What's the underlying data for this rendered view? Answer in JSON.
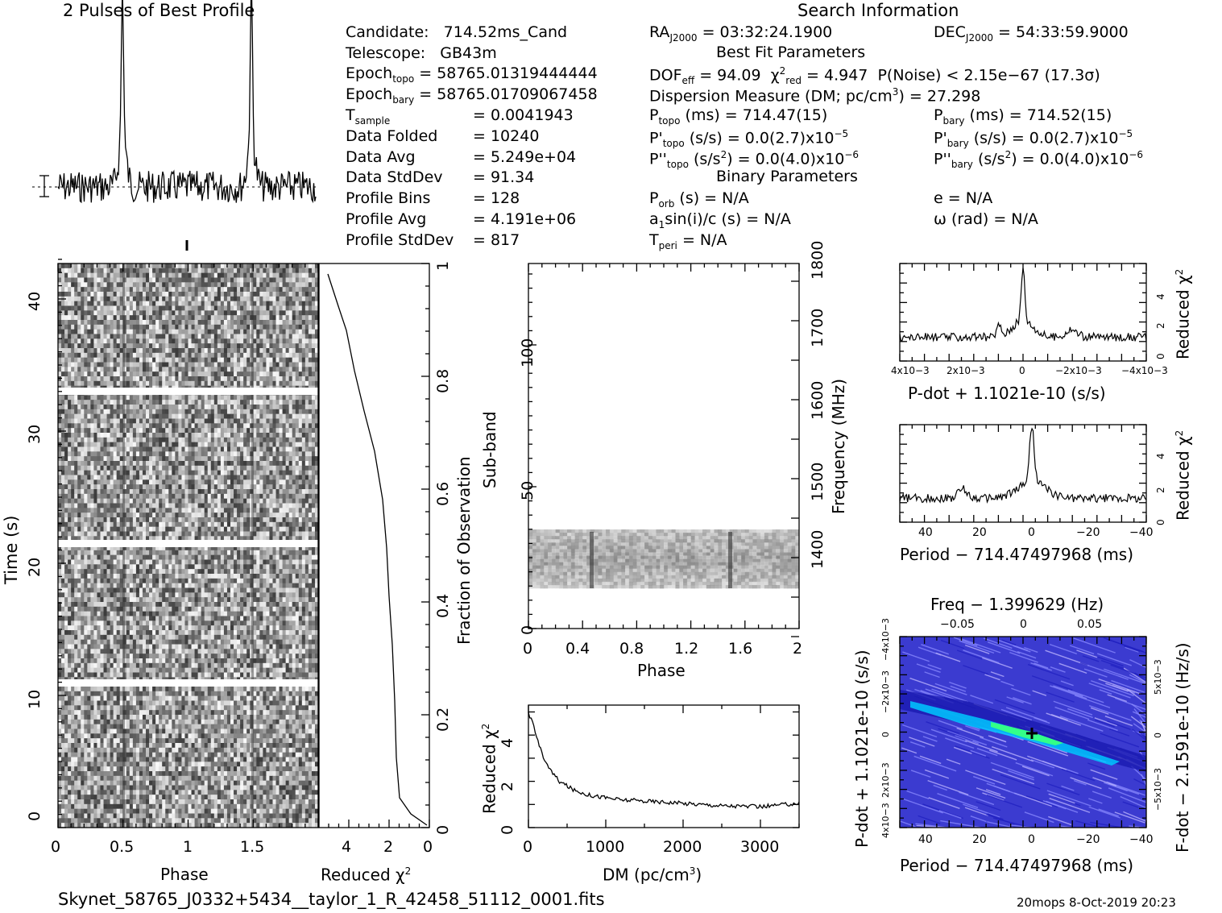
{
  "header": {
    "profile_title": "2 Pulses of Best Profile",
    "search_title": "Search Information",
    "best_fit_title": "Best Fit Parameters",
    "binary_title": "Binary Parameters"
  },
  "info_left": [
    {
      "label": "Candidate:",
      "value": "714.52ms_Cand"
    },
    {
      "label": "Telescope:",
      "value": "GB43m"
    },
    {
      "label": "Epoch",
      "sub": "topo",
      "value": "= 58765.01319444444"
    },
    {
      "label": "Epoch",
      "sub": "bary",
      "value": "= 58765.01709067458"
    },
    {
      "label": "T",
      "sub": "sample",
      "value": "=   0.0041943"
    },
    {
      "label": "Data Folded",
      "value": "=   10240"
    },
    {
      "label": "Data Avg",
      "value": "=   5.249e+04"
    },
    {
      "label": "Data StdDev",
      "value": "=   91.34"
    },
    {
      "label": "Profile Bins",
      "value": "=   128"
    },
    {
      "label": "Profile Avg",
      "value": "=   4.191e+06"
    },
    {
      "label": "Profile StdDev",
      "value": "=  817"
    }
  ],
  "search": {
    "ra_label": "RA",
    "ra_sub": "J2000",
    "ra_value": "= 03:32:24.1900",
    "dec_label": "DEC",
    "dec_sub": "J2000",
    "dec_value": "= 54:33:59.9000",
    "dof_label": "DOF",
    "dof_sub": "eff",
    "dof_value": "= 94.09",
    "chi_label": "χ",
    "chi_sup": "2",
    "chi_sub": "red",
    "chi_value": "= 4.947",
    "pnoise": "P(Noise) < 2.15e−67   (17.3σ)",
    "dm_text": "Dispersion Measure (DM; pc/cm",
    "dm_sup": "3",
    "dm_value": ") = 27.298",
    "ptopo": "(ms) =  714.47(15)",
    "pbary": "(ms) =  714.52(15)",
    "pdtopo": "(s/s) = 0.0(2.7)x10",
    "pdbary": "(s/s) = 0.0(2.7)x10",
    "pd_exp": "−5",
    "pddtopo": "(s/s",
    "pddbary": "(s/s",
    "pdd_rest": ") = 0.0(4.0)x10",
    "pdd_exp": "−6",
    "porb": "(s) = N/A",
    "ecc": "e = N/A",
    "a1sini": "a",
    "a1sini_rest": "sin(i)/c (s) = N/A",
    "omega": "ω (rad) = N/A",
    "tperi": "= N/A"
  },
  "footer": {
    "filename": "Skynet_58765_J0332+5434__taylor_1_R_42458_51112_0001.fits",
    "stamp": "20mops   8-Oct-2019 20:23"
  },
  "labels": {
    "time_axis": "Time (s)",
    "phase_axis": "Phase",
    "reduced_chi2": "Reduced χ",
    "fraction_obs": "Fraction of Observation",
    "subband": "Sub-band",
    "frequency": "Frequency (MHz)",
    "dm_axis": "DM (pc/cm",
    "pdot_axis": "P-dot + 1.1021e-10 (s/s)",
    "period_axis": "Period − 714.47497968 (ms)",
    "freq_top": "Freq − 1.399629 (Hz)",
    "pdot_left": "P-dot + 1.1021e-10 (s/s)",
    "fdot_right": "F-dot − 2.1591e-10 (Hz/s)"
  },
  "chart_data": [
    {
      "type": "line",
      "name": "pulse-profile",
      "title": "2 Pulses of Best Profile",
      "x": "phase 0-2",
      "pulse_phases": [
        0.5,
        1.5
      ]
    },
    {
      "type": "heatmap",
      "name": "time-phase",
      "xlabel": "Phase",
      "ylabel": "Time (s)",
      "xlim": [
        0,
        2
      ],
      "ylim": [
        0,
        43
      ],
      "xticks": [
        "0",
        "0.5",
        "1",
        "1.5"
      ],
      "yticks": [
        "0",
        "10",
        "20",
        "30",
        "40"
      ],
      "gaps_s": [
        11,
        21.7,
        33
      ]
    },
    {
      "type": "line",
      "name": "time-chi2",
      "xlabel": "Reduced χ2",
      "ylabel": "Fraction of Observation",
      "xlim": [
        5,
        0
      ],
      "ylim": [
        0,
        1
      ],
      "xticks": [
        "4",
        "2",
        "0"
      ],
      "yticks": [
        "0",
        "0.2",
        "0.4",
        "0.6",
        "0.8",
        "1"
      ]
    },
    {
      "type": "heatmap",
      "name": "subband-phase",
      "xlabel": "Phase",
      "ylabel": "Sub-band",
      "y2label": "Frequency (MHz)",
      "xlim": [
        0,
        2
      ],
      "ylim": [
        0,
        128
      ],
      "xticks": [
        "0",
        "0.4",
        "0.8",
        "1.2",
        "1.6",
        "2"
      ],
      "yticks": [
        "0",
        "50",
        "100"
      ],
      "y2ticks": [
        "1400",
        "1500",
        "1600",
        "1700",
        "1800"
      ]
    },
    {
      "type": "line",
      "name": "dm-chi2",
      "xlabel": "DM (pc/cm3)",
      "ylabel": "Reduced χ2",
      "xlim": [
        0,
        3500
      ],
      "ylim": [
        0,
        5.3
      ],
      "xticks": [
        "0",
        "1000",
        "2000",
        "3000"
      ],
      "yticks": [
        "0",
        "2",
        "4"
      ],
      "x": [
        0,
        50,
        100,
        200,
        300,
        400,
        500,
        600,
        800,
        1000,
        1200,
        1500,
        1800,
        2000,
        2500,
        3000,
        3500
      ],
      "values": [
        4.9,
        4.6,
        3.9,
        3.0,
        2.4,
        2.0,
        1.8,
        1.6,
        1.4,
        1.3,
        1.2,
        1.15,
        1.1,
        1.05,
        0.95,
        0.9,
        1.05
      ]
    },
    {
      "type": "line",
      "name": "pdot-chi2",
      "xlabel": "P-dot + 1.1021e-10 (s/s)",
      "ylabel": "Reduced χ2",
      "xticks": [
        "4x10−3",
        "2x10−3",
        "0",
        "−2x10−3",
        "−4x10−3"
      ],
      "yticks": [
        "0",
        "2",
        "4"
      ]
    },
    {
      "type": "line",
      "name": "period-chi2",
      "xlabel": "Period − 714.47497968 (ms)",
      "ylabel": "Reduced χ2",
      "xticks": [
        "40",
        "20",
        "0",
        "−20",
        "−40"
      ],
      "yticks": [
        "0",
        "2",
        "4"
      ]
    },
    {
      "type": "heatmap",
      "name": "period-pdot",
      "xlabel": "Period − 714.47497968 (ms)",
      "ylabel": "P-dot + 1.1021e-10 (s/s)",
      "x2label": "Freq − 1.399629 (Hz)",
      "y2label": "F-dot − 2.1591e-10 (Hz/s)",
      "xticks": [
        "40",
        "20",
        "0",
        "−20",
        "−40"
      ],
      "x2ticks": [
        "−0.05",
        "0",
        "0.05"
      ],
      "yticks": [
        "4x10−3",
        "2x10−3",
        "0",
        "−2x10−3",
        "−4x10−3"
      ],
      "y2ticks": [
        "5x10−3",
        "0",
        "−5x10−3"
      ]
    }
  ]
}
